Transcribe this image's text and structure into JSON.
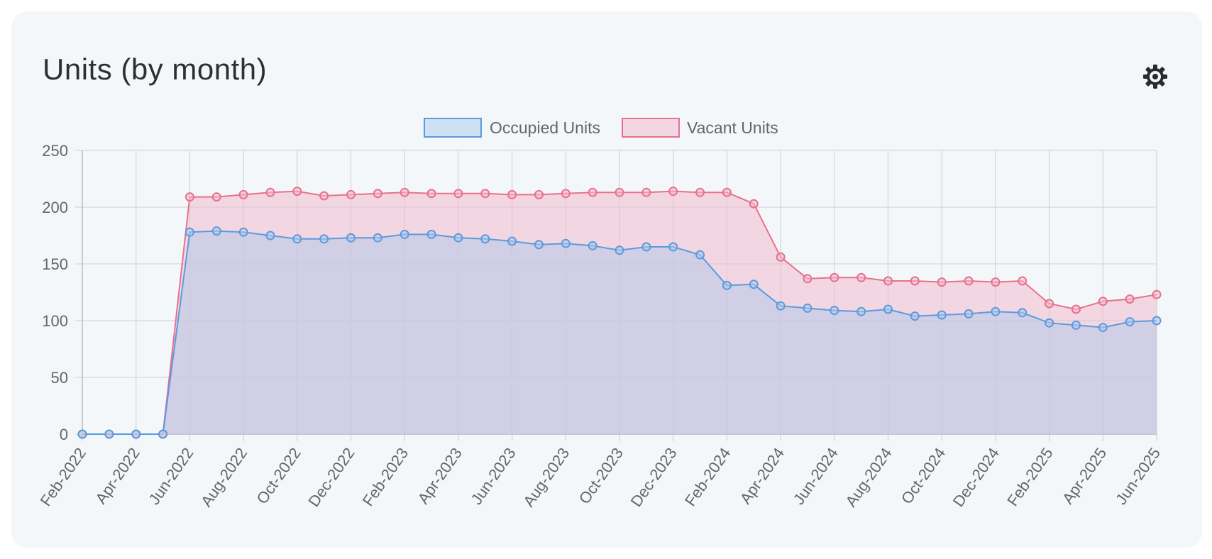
{
  "header": {
    "title": "Units (by month)",
    "settings_icon": "gear-icon"
  },
  "colors": {
    "occupied_line": "#5b9be0",
    "occupied_fill": "rgba(180,200,232,0.55)",
    "vacant_line": "#e8718a",
    "vacant_fill": "rgba(240,190,205,0.55)",
    "grid": "#d3d7dc"
  },
  "chart_data": {
    "type": "area",
    "title": "Units (by month)",
    "xlabel": "",
    "ylabel": "",
    "ylim": [
      0,
      250
    ],
    "y_ticks": [
      0,
      50,
      100,
      150,
      200,
      250
    ],
    "stacked": false,
    "legend_position": "top-center",
    "grid": true,
    "x": [
      "Feb-2022",
      "Mar-2022",
      "Apr-2022",
      "May-2022",
      "Jun-2022",
      "Jul-2022",
      "Aug-2022",
      "Sep-2022",
      "Oct-2022",
      "Nov-2022",
      "Dec-2022",
      "Jan-2023",
      "Feb-2023",
      "Mar-2023",
      "Apr-2023",
      "May-2023",
      "Jun-2023",
      "Jul-2023",
      "Aug-2023",
      "Sep-2023",
      "Oct-2023",
      "Nov-2023",
      "Dec-2023",
      "Jan-2024",
      "Feb-2024",
      "Mar-2024",
      "Apr-2024",
      "May-2024",
      "Jun-2024",
      "Jul-2024",
      "Aug-2024",
      "Sep-2024",
      "Oct-2024",
      "Nov-2024",
      "Dec-2024",
      "Jan-2025",
      "Feb-2025",
      "Mar-2025",
      "Apr-2025",
      "May-2025",
      "Jun-2025"
    ],
    "x_tick_labels": [
      "Feb-2022",
      "Apr-2022",
      "Jun-2022",
      "Aug-2022",
      "Oct-2022",
      "Dec-2022",
      "Feb-2023",
      "Apr-2023",
      "Jun-2023",
      "Aug-2023",
      "Oct-2023",
      "Dec-2023",
      "Feb-2024",
      "Apr-2024",
      "Jun-2024",
      "Aug-2024",
      "Oct-2024",
      "Dec-2024",
      "Feb-2025",
      "Apr-2025",
      "Jun-2025"
    ],
    "series": [
      {
        "name": "Occupied Units",
        "values": [
          0,
          0,
          0,
          0,
          178,
          179,
          178,
          175,
          172,
          172,
          173,
          173,
          176,
          176,
          173,
          172,
          170,
          167,
          168,
          166,
          162,
          165,
          165,
          158,
          131,
          132,
          113,
          111,
          109,
          108,
          110,
          104,
          105,
          106,
          108,
          107,
          98,
          96,
          94,
          99,
          100
        ]
      },
      {
        "name": "Vacant Units",
        "values": [
          0,
          0,
          0,
          0,
          209,
          209,
          211,
          213,
          214,
          210,
          211,
          212,
          213,
          212,
          212,
          212,
          211,
          211,
          212,
          213,
          213,
          213,
          214,
          213,
          213,
          203,
          156,
          137,
          138,
          138,
          135,
          135,
          134,
          135,
          134,
          135,
          115,
          110,
          117,
          119,
          123
        ]
      }
    ]
  }
}
